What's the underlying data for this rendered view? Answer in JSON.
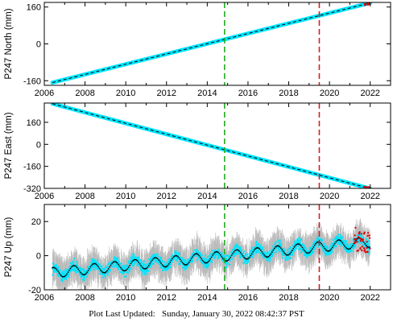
{
  "footer": {
    "label": "Plot Last Updated:",
    "value": "Sunday, January 30, 2022 08:42:37 PST"
  },
  "colors": {
    "observed": "#00e5ff",
    "model": "#000000",
    "error_bars": "#b0b0b0",
    "recent": "#e00000",
    "green_event": "#22aa22",
    "red_event": "#d42020"
  },
  "chart_data": [
    {
      "type": "scatter",
      "name": "north",
      "ylabel": "P247 North (mm)",
      "xlim": [
        2006.0,
        2023.0
      ],
      "ylim": [
        -180,
        180
      ],
      "x_ticks": [
        2006,
        2008,
        2010,
        2012,
        2014,
        2016,
        2018,
        2020,
        2022
      ],
      "y_ticks": [
        -160,
        0,
        160
      ],
      "trend": {
        "x": [
          2006.4,
          2022.0
        ],
        "y": [
          -168,
          178
        ]
      },
      "vertical_lines": [
        {
          "x": 2014.85,
          "style": "dashed",
          "color": "green"
        },
        {
          "x": 2019.5,
          "style": "dashed",
          "color": "red"
        }
      ]
    },
    {
      "type": "scatter",
      "name": "east",
      "ylabel": "P247 East (mm)",
      "xlim": [
        2006.0,
        2023.0
      ],
      "ylim": [
        -320,
        300
      ],
      "x_ticks": [
        2006,
        2008,
        2010,
        2012,
        2014,
        2016,
        2018,
        2020,
        2022
      ],
      "y_ticks": [
        -320,
        -160,
        0,
        160
      ],
      "trend": {
        "x": [
          2006.4,
          2022.0
        ],
        "y": [
          295,
          -322
        ]
      },
      "vertical_lines": [
        {
          "x": 2014.85,
          "style": "dashed",
          "color": "green"
        },
        {
          "x": 2019.5,
          "style": "dashed",
          "color": "red"
        }
      ]
    },
    {
      "type": "scatter",
      "name": "up",
      "ylabel": "P247 Up (mm)",
      "xlim": [
        2006.0,
        2023.0
      ],
      "ylim": [
        -20,
        30
      ],
      "x_ticks": [
        2006,
        2008,
        2010,
        2012,
        2014,
        2016,
        2018,
        2020,
        2022
      ],
      "y_ticks": [
        -20,
        0,
        20
      ],
      "trend": {
        "x": [
          2006.4,
          2022.0
        ],
        "y": [
          -10,
          8
        ]
      },
      "seasonal_amplitude_mm": 3,
      "vertical_lines": [
        {
          "x": 2014.85,
          "style": "dashed",
          "color": "green"
        },
        {
          "x": 2019.5,
          "style": "dashed",
          "color": "red"
        }
      ]
    }
  ]
}
